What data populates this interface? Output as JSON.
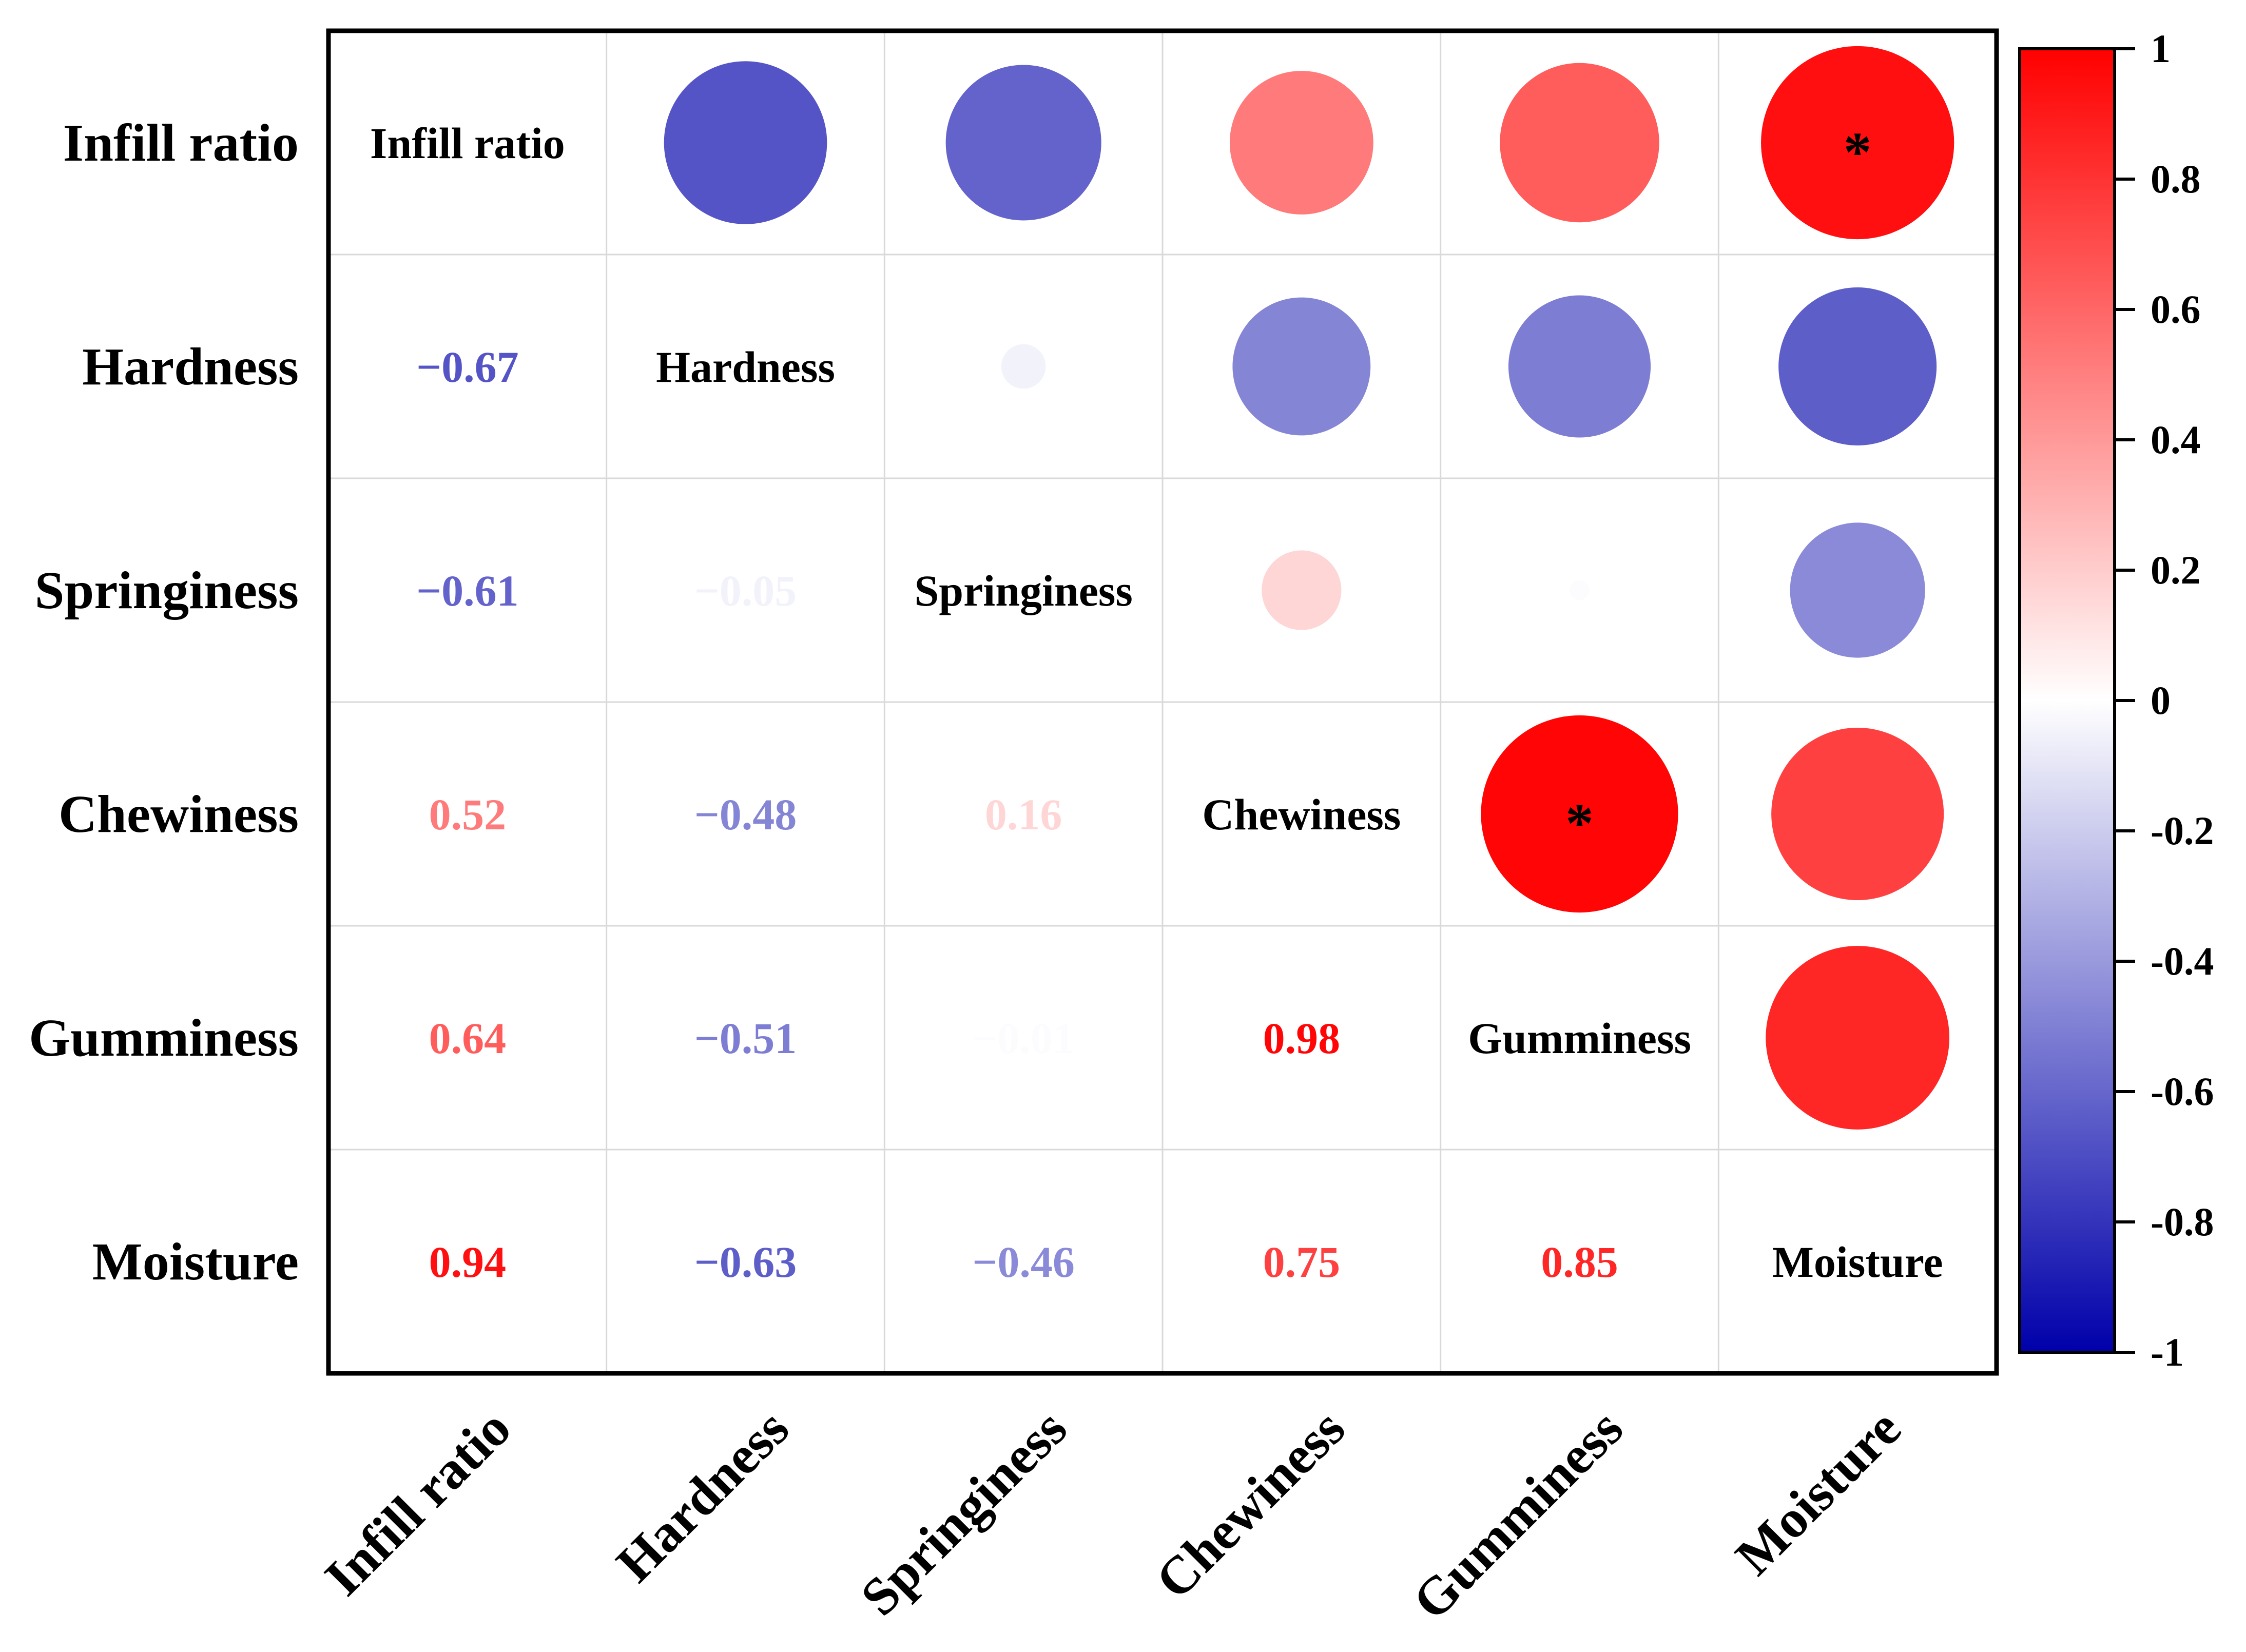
{
  "chart_data": {
    "type": "correlation-matrix",
    "variables": [
      "Infill ratio",
      "Hardness",
      "Springiness",
      "Chewiness",
      "Gumminess",
      "Moisture"
    ],
    "matrix": [
      [
        1.0,
        -0.67,
        -0.61,
        0.52,
        0.64,
        0.94
      ],
      [
        -0.67,
        1.0,
        -0.05,
        -0.48,
        -0.51,
        -0.63
      ],
      [
        -0.61,
        -0.05,
        1.0,
        0.16,
        -0.01,
        -0.46
      ],
      [
        0.52,
        -0.48,
        0.16,
        1.0,
        0.98,
        0.75
      ],
      [
        0.64,
        -0.51,
        -0.01,
        0.98,
        1.0,
        0.85
      ],
      [
        0.94,
        -0.63,
        -0.46,
        0.75,
        0.85,
        1.0
      ]
    ],
    "value_labels": [
      [
        "Infill ratio",
        "",
        "",
        "",
        "",
        ""
      ],
      [
        "−0.67",
        "Hardness",
        "",
        "",
        "",
        ""
      ],
      [
        "−0.61",
        "−0.05",
        "Springiness",
        "",
        "",
        ""
      ],
      [
        "0.52",
        "−0.48",
        "0.16",
        "Chewiness",
        "",
        ""
      ],
      [
        "0.64",
        "−0.51",
        "−0.01",
        "0.98",
        "Gumminess",
        ""
      ],
      [
        "0.94",
        "−0.63",
        "−0.46",
        "0.75",
        "0.85",
        "Moisture"
      ]
    ],
    "significance_marker": "*",
    "significant_cells": [
      [
        0,
        5
      ],
      [
        3,
        4
      ]
    ],
    "lower_triangle": "numbers",
    "upper_triangle": "circles",
    "diagonal": "variable names",
    "colorbar": {
      "range": [
        -1,
        1
      ],
      "tick_labels": [
        "1",
        "0.8",
        "0.6",
        "0.4",
        "0.2",
        "0",
        "-0.2",
        "-0.4",
        "-0.6",
        "-0.8",
        "-1"
      ],
      "tick_values": [
        1,
        0.8,
        0.6,
        0.4,
        0.2,
        0,
        -0.2,
        -0.4,
        -0.6,
        -0.8,
        -1
      ],
      "colors": {
        "negative": "#0000aa",
        "mid": "#ffffff",
        "positive": "#ff0000"
      }
    }
  }
}
